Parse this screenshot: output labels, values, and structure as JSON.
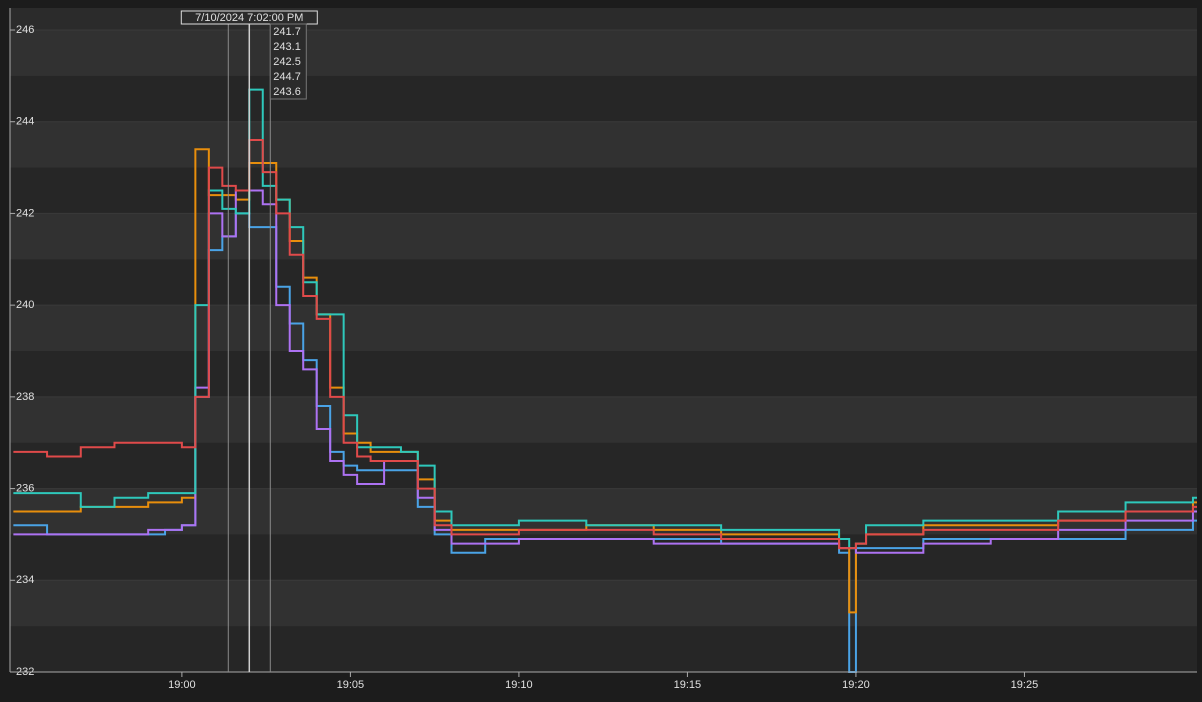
{
  "chart_data": {
    "type": "line",
    "step": true,
    "x": [
      1135,
      1136,
      1137,
      1138,
      1139,
      1139.5,
      1140,
      1140.4,
      1140.8,
      1141.2,
      1141.6,
      1142,
      1142.4,
      1142.8,
      1143.2,
      1143.6,
      1144,
      1144.4,
      1144.8,
      1145.2,
      1145.6,
      1146,
      1146.5,
      1147,
      1147.5,
      1148,
      1149,
      1150,
      1152,
      1154,
      1156,
      1158,
      1159.5,
      1159.8,
      1160,
      1160.3,
      1162,
      1164,
      1166,
      1168,
      1170
    ],
    "series": [
      {
        "color": "#4aa3e6",
        "values": [
          235.2,
          235.0,
          235.0,
          235.0,
          235.0,
          235.1,
          235.2,
          238.0,
          241.2,
          241.5,
          242.0,
          241.7,
          241.7,
          240.4,
          239.6,
          238.8,
          237.8,
          236.8,
          236.5,
          236.4,
          236.4,
          236.4,
          236.4,
          235.6,
          235.0,
          234.6,
          234.9,
          234.9,
          234.9,
          234.9,
          234.8,
          234.8,
          234.6,
          232.0,
          234.7,
          234.7,
          234.9,
          234.9,
          234.9,
          235.1,
          235.3
        ]
      },
      {
        "color": "#e88e0c",
        "values": [
          235.5,
          235.5,
          235.6,
          235.6,
          235.7,
          235.7,
          235.8,
          243.4,
          242.4,
          242.4,
          242.3,
          243.1,
          243.1,
          242.3,
          241.4,
          240.6,
          239.8,
          238.2,
          237.2,
          237.0,
          236.8,
          236.8,
          236.8,
          236.2,
          235.3,
          235.1,
          235.1,
          235.1,
          235.2,
          235.1,
          235.0,
          235.0,
          234.7,
          233.3,
          234.8,
          235.0,
          235.2,
          235.2,
          235.3,
          235.5,
          235.7
        ]
      },
      {
        "color": "#ad72f2",
        "values": [
          235.0,
          235.0,
          235.0,
          235.0,
          235.1,
          235.1,
          235.2,
          238.2,
          242.0,
          241.5,
          242.5,
          242.5,
          242.2,
          240.0,
          239.0,
          238.6,
          237.3,
          236.6,
          236.3,
          236.1,
          236.1,
          236.6,
          236.6,
          235.8,
          235.1,
          234.8,
          234.8,
          234.9,
          234.9,
          234.8,
          234.8,
          234.8,
          234.7,
          234.7,
          234.6,
          234.6,
          234.8,
          234.9,
          235.1,
          235.3,
          235.5
        ]
      },
      {
        "color": "#2ec8bb",
        "values": [
          235.9,
          235.9,
          235.6,
          235.8,
          235.9,
          235.9,
          235.9,
          240.0,
          242.5,
          242.1,
          242.0,
          244.7,
          242.6,
          242.3,
          241.7,
          240.5,
          239.8,
          239.8,
          237.6,
          236.9,
          236.9,
          236.9,
          236.8,
          236.5,
          235.5,
          235.2,
          235.2,
          235.3,
          235.2,
          235.2,
          235.1,
          235.1,
          234.9,
          234.7,
          234.8,
          235.2,
          235.3,
          235.3,
          235.5,
          235.7,
          235.8
        ]
      },
      {
        "color": "#e04a4a",
        "values": [
          236.8,
          236.7,
          236.9,
          237.0,
          237.0,
          237.0,
          236.9,
          238.0,
          243.0,
          242.6,
          242.5,
          243.6,
          242.9,
          242.0,
          241.1,
          240.2,
          239.7,
          238.0,
          237.0,
          236.7,
          236.6,
          236.6,
          236.6,
          236.0,
          235.2,
          235.0,
          235.0,
          235.1,
          235.1,
          235.0,
          234.9,
          234.9,
          234.7,
          234.7,
          234.8,
          235.0,
          235.1,
          235.1,
          235.3,
          235.5,
          235.6
        ]
      }
    ],
    "xlim": [
      1134.9,
      1170.12
    ],
    "xticks": [
      {
        "value": 1140,
        "label": "19:00"
      },
      {
        "value": 1145,
        "label": "19:05"
      },
      {
        "value": 1150,
        "label": "19:10"
      },
      {
        "value": 1155,
        "label": "19:15"
      },
      {
        "value": 1160,
        "label": "19:20"
      },
      {
        "value": 1165,
        "label": "19:25"
      }
    ],
    "ylim": [
      232,
      246
    ],
    "yticks": [
      232,
      234,
      236,
      238,
      240,
      242,
      244,
      246
    ],
    "grid": true,
    "cursor": {
      "label": "7/10/2024 7:02:00 PM",
      "x": 1142,
      "values": [
        241.7,
        243.1,
        242.5,
        244.7,
        243.6
      ]
    }
  }
}
